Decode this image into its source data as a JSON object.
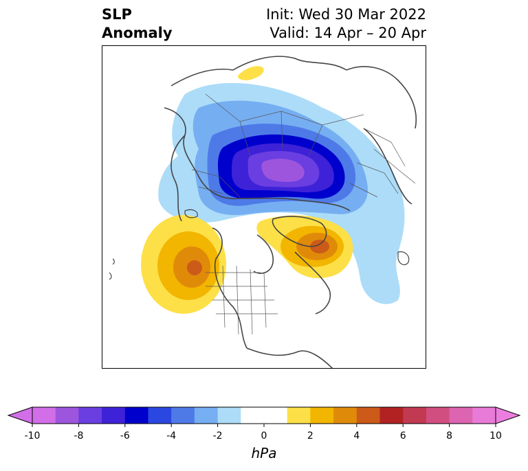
{
  "header": {
    "title_line1": "SLP",
    "title_line2": "Anomaly",
    "init_text": "Init: Wed 30 Mar 2022",
    "valid_text": "Valid: 14 Apr – 20 Apr"
  },
  "colorbar": {
    "unit": "hPa",
    "ticks": [
      "-10",
      "-8",
      "-6",
      "-4",
      "-2",
      "0",
      "2",
      "4",
      "6",
      "8",
      "10"
    ],
    "colors": [
      "#d26ee8",
      "#9e55de",
      "#6a3ee0",
      "#3e22d8",
      "#0000cc",
      "#2a48e0",
      "#4e7ae8",
      "#76aef2",
      "#acdcf8",
      "#ffffff",
      "#ffffff",
      "#fde047",
      "#f2b500",
      "#e08a0a",
      "#cc5a18",
      "#b22222",
      "#c23a52",
      "#d04e80",
      "#dd64b0",
      "#e87ad8"
    ],
    "under_color": "#d26ee8",
    "over_color": "#ec7ee0"
  },
  "map": {
    "projection": "polar-stereographic",
    "anomalies": [
      {
        "name": "negative-arctic",
        "peak_hPa": -10
      },
      {
        "name": "positive-north-pacific",
        "peak_hPa": 6
      },
      {
        "name": "positive-greenland",
        "peak_hPa": 6
      }
    ]
  }
}
